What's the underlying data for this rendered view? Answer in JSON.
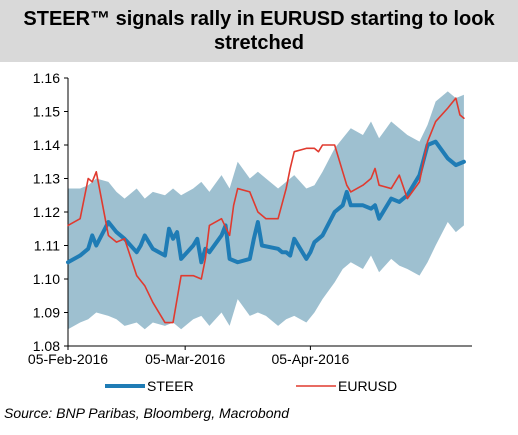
{
  "title": "STEER™ signals rally in EURUSD starting to look stretched",
  "source": "Source:  BNP Paribas, Bloomberg, Macrobond",
  "colors": {
    "steer": "#1f7cb5",
    "eurusd": "#e03a2f",
    "band": "#9ec0d0",
    "title_bg": "#d9d9d9"
  },
  "chart_data": {
    "type": "line",
    "title": "STEER™ signals rally in EURUSD starting to look stretched",
    "xlabel": "",
    "ylabel": "",
    "ylim": [
      1.08,
      1.16
    ],
    "yticks": [
      "1.08",
      "1.09",
      "1.10",
      "1.11",
      "1.12",
      "1.13",
      "1.14",
      "1.15",
      "1.16"
    ],
    "xticks": [
      "05-Feb-2016",
      "05-Mar-2016",
      "05-Apr-2016"
    ],
    "xlim": [
      "2016-02-05",
      "2016-05-15"
    ],
    "grid": false,
    "legend_position": "bottom",
    "band": {
      "name": "",
      "x": [
        "2016-02-05",
        "2016-02-08",
        "2016-02-10",
        "2016-02-12",
        "2016-02-15",
        "2016-02-17",
        "2016-02-19",
        "2016-02-22",
        "2016-02-24",
        "2016-02-26",
        "2016-02-29",
        "2016-03-02",
        "2016-03-04",
        "2016-03-07",
        "2016-03-09",
        "2016-03-11",
        "2016-03-14",
        "2016-03-16",
        "2016-03-18",
        "2016-03-21",
        "2016-03-23",
        "2016-03-25",
        "2016-03-28",
        "2016-03-30",
        "2016-04-01",
        "2016-04-04",
        "2016-04-06",
        "2016-04-08",
        "2016-04-11",
        "2016-04-13",
        "2016-04-15",
        "2016-04-18",
        "2016-04-20",
        "2016-04-22",
        "2016-04-25",
        "2016-04-27",
        "2016-04-29",
        "2016-05-02",
        "2016-05-04",
        "2016-05-06",
        "2016-05-09",
        "2016-05-11",
        "2016-05-13"
      ],
      "upper": [
        1.127,
        1.127,
        1.128,
        1.13,
        1.129,
        1.126,
        1.124,
        1.127,
        1.124,
        1.126,
        1.125,
        1.127,
        1.125,
        1.127,
        1.129,
        1.126,
        1.131,
        1.127,
        1.135,
        1.13,
        1.132,
        1.13,
        1.127,
        1.129,
        1.131,
        1.127,
        1.128,
        1.132,
        1.139,
        1.142,
        1.145,
        1.143,
        1.147,
        1.142,
        1.147,
        1.145,
        1.143,
        1.141,
        1.146,
        1.153,
        1.156,
        1.154,
        1.155
      ],
      "lower": [
        1.085,
        1.087,
        1.088,
        1.09,
        1.089,
        1.088,
        1.086,
        1.087,
        1.085,
        1.087,
        1.086,
        1.087,
        1.085,
        1.088,
        1.089,
        1.086,
        1.09,
        1.086,
        1.094,
        1.089,
        1.09,
        1.089,
        1.086,
        1.088,
        1.089,
        1.087,
        1.09,
        1.094,
        1.099,
        1.103,
        1.105,
        1.103,
        1.107,
        1.102,
        1.106,
        1.104,
        1.103,
        1.101,
        1.105,
        1.11,
        1.117,
        1.114,
        1.116
      ]
    },
    "series": [
      {
        "name": "STEER",
        "x": [
          "2016-02-05",
          "2016-02-08",
          "2016-02-10",
          "2016-02-11",
          "2016-02-12",
          "2016-02-15",
          "2016-02-17",
          "2016-02-19",
          "2016-02-22",
          "2016-02-23",
          "2016-02-24",
          "2016-02-26",
          "2016-02-29",
          "2016-03-01",
          "2016-03-02",
          "2016-03-03",
          "2016-03-04",
          "2016-03-07",
          "2016-03-08",
          "2016-03-09",
          "2016-03-10",
          "2016-03-11",
          "2016-03-14",
          "2016-03-15",
          "2016-03-16",
          "2016-03-18",
          "2016-03-21",
          "2016-03-22",
          "2016-03-23",
          "2016-03-24",
          "2016-03-28",
          "2016-03-29",
          "2016-03-30",
          "2016-03-31",
          "2016-04-01",
          "2016-04-04",
          "2016-04-05",
          "2016-04-06",
          "2016-04-08",
          "2016-04-11",
          "2016-04-13",
          "2016-04-14",
          "2016-04-15",
          "2016-04-18",
          "2016-04-20",
          "2016-04-21",
          "2016-04-22",
          "2016-04-25",
          "2016-04-27",
          "2016-04-29",
          "2016-05-02",
          "2016-05-04",
          "2016-05-06",
          "2016-05-09",
          "2016-05-11",
          "2016-05-13"
        ],
        "values": [
          1.105,
          1.107,
          1.109,
          1.113,
          1.11,
          1.117,
          1.114,
          1.112,
          1.108,
          1.11,
          1.113,
          1.109,
          1.107,
          1.115,
          1.112,
          1.114,
          1.106,
          1.11,
          1.112,
          1.105,
          1.109,
          1.108,
          1.113,
          1.116,
          1.106,
          1.105,
          1.106,
          1.112,
          1.117,
          1.11,
          1.109,
          1.108,
          1.108,
          1.107,
          1.112,
          1.106,
          1.108,
          1.111,
          1.113,
          1.12,
          1.122,
          1.126,
          1.122,
          1.122,
          1.121,
          1.122,
          1.118,
          1.124,
          1.123,
          1.125,
          1.131,
          1.14,
          1.141,
          1.136,
          1.134,
          1.135
        ]
      },
      {
        "name": "EURUSD",
        "x": [
          "2016-02-05",
          "2016-02-08",
          "2016-02-10",
          "2016-02-11",
          "2016-02-12",
          "2016-02-15",
          "2016-02-17",
          "2016-02-19",
          "2016-02-22",
          "2016-02-24",
          "2016-02-26",
          "2016-02-29",
          "2016-03-02",
          "2016-03-04",
          "2016-03-07",
          "2016-03-09",
          "2016-03-10",
          "2016-03-11",
          "2016-03-14",
          "2016-03-16",
          "2016-03-17",
          "2016-03-18",
          "2016-03-21",
          "2016-03-23",
          "2016-03-25",
          "2016-03-28",
          "2016-03-30",
          "2016-03-31",
          "2016-04-01",
          "2016-04-04",
          "2016-04-06",
          "2016-04-07",
          "2016-04-08",
          "2016-04-11",
          "2016-04-13",
          "2016-04-14",
          "2016-04-15",
          "2016-04-18",
          "2016-04-20",
          "2016-04-21",
          "2016-04-22",
          "2016-04-25",
          "2016-04-27",
          "2016-04-29",
          "2016-05-02",
          "2016-05-04",
          "2016-05-06",
          "2016-05-09",
          "2016-05-11",
          "2016-05-12",
          "2016-05-13"
        ],
        "values": [
          1.116,
          1.118,
          1.13,
          1.129,
          1.132,
          1.113,
          1.111,
          1.112,
          1.101,
          1.098,
          1.093,
          1.087,
          1.087,
          1.101,
          1.101,
          1.1,
          1.106,
          1.116,
          1.118,
          1.113,
          1.122,
          1.127,
          1.126,
          1.12,
          1.118,
          1.118,
          1.127,
          1.133,
          1.138,
          1.139,
          1.139,
          1.138,
          1.14,
          1.14,
          1.132,
          1.128,
          1.126,
          1.128,
          1.13,
          1.133,
          1.128,
          1.127,
          1.131,
          1.124,
          1.129,
          1.141,
          1.147,
          1.151,
          1.154,
          1.149,
          1.148
        ]
      }
    ]
  }
}
